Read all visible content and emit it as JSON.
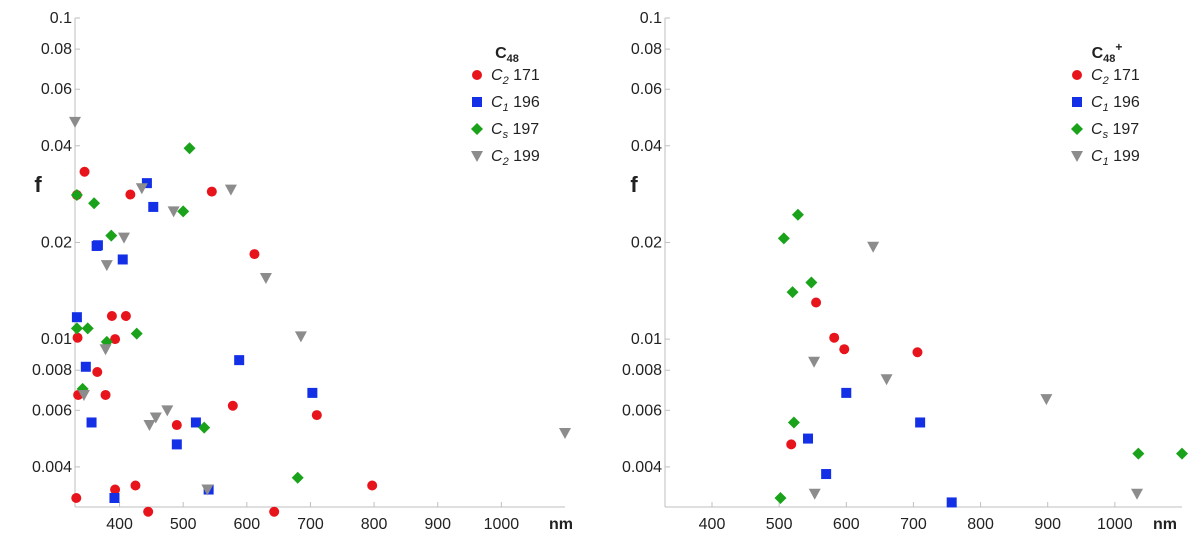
{
  "colors": {
    "C2_171": "#e8141c",
    "C1_196": "#1430e6",
    "Cs_197": "#1aa31a",
    "gray": "#8c8c8c",
    "axis": "#bfbfbf"
  },
  "chart_data": [
    {
      "type": "scatter",
      "title": "C48",
      "legend_title": {
        "base": "C",
        "sub": "48",
        "sup": ""
      },
      "xlabel": "nm",
      "ylabel": "f",
      "xlim": [
        330,
        1100
      ],
      "ylim": [
        0.003,
        0.1
      ],
      "yscale": "log",
      "xticks": [
        "400",
        "500",
        "600",
        "700",
        "800",
        "900",
        "1000"
      ],
      "xtick_values": [
        400,
        500,
        600,
        700,
        800,
        900,
        1000
      ],
      "yticks": [
        "0.004",
        "0.006",
        "0.008",
        "0.01",
        "0.02",
        "0.04",
        "0.06",
        "0.08",
        "0.1"
      ],
      "ytick_values": [
        0.004,
        0.006,
        0.008,
        0.01,
        0.02,
        0.04,
        0.06,
        0.08,
        0.1
      ],
      "legend_position": "top-right",
      "series": [
        {
          "name": "C2 171",
          "sym": "C",
          "sub": "2",
          "num": "171",
          "marker": "circle",
          "color_key": "C2_171",
          "points": [
            [
              333,
              0.0281
            ],
            [
              345,
              0.0332
            ],
            [
              334,
              0.0101
            ],
            [
              335,
              0.0067
            ],
            [
              332,
              0.0032
            ],
            [
              365,
              0.0079
            ],
            [
              378,
              0.0067
            ],
            [
              388,
              0.0118
            ],
            [
              393,
              0.01
            ],
            [
              393,
              0.0034
            ],
            [
              410,
              0.0118
            ],
            [
              417,
              0.0282
            ],
            [
              425,
              0.0035
            ],
            [
              445,
              0.0029
            ],
            [
              490,
              0.0054
            ],
            [
              545,
              0.0288
            ],
            [
              578,
              0.0062
            ],
            [
              612,
              0.0184
            ],
            [
              643,
              0.0029
            ],
            [
              710,
              0.0058
            ],
            [
              797,
              0.0035
            ]
          ]
        },
        {
          "name": "C1 196",
          "sym": "C",
          "sub": "1",
          "num": "196",
          "marker": "square",
          "color_key": "C1_196",
          "points": [
            [
              333,
              0.0117
            ],
            [
              347,
              0.0082
            ],
            [
              356,
              0.0055
            ],
            [
              364,
              0.0195
            ],
            [
              366,
              0.0196
            ],
            [
              392,
              0.0032
            ],
            [
              405,
              0.0177
            ],
            [
              443,
              0.0306
            ],
            [
              453,
              0.0258
            ],
            [
              490,
              0.0047
            ],
            [
              520,
              0.0055
            ],
            [
              540,
              0.0034
            ],
            [
              588,
              0.0086
            ],
            [
              703,
              0.0068
            ]
          ]
        },
        {
          "name": "Cs 197",
          "sym": "C",
          "sub": "s",
          "num": "197",
          "marker": "diamond",
          "color_key": "Cs_197",
          "points": [
            [
              333,
              0.0281
            ],
            [
              333,
              0.0108
            ],
            [
              342,
              0.007
            ],
            [
              350,
              0.0108
            ],
            [
              360,
              0.0265
            ],
            [
              380,
              0.0098
            ],
            [
              387,
              0.021
            ],
            [
              427,
              0.0104
            ],
            [
              500,
              0.025
            ],
            [
              510,
              0.0393
            ],
            [
              533,
              0.0053
            ],
            [
              680,
              0.0037
            ]
          ]
        },
        {
          "name": "C2 199",
          "sym": "C",
          "sub": "2",
          "num": "199",
          "marker": "triangle-down",
          "color_key": "gray",
          "points": [
            [
              330,
              0.0475
            ],
            [
              344,
              0.0067
            ],
            [
              378,
              0.0093
            ],
            [
              380,
              0.017
            ],
            [
              407,
              0.0207
            ],
            [
              435,
              0.0295
            ],
            [
              447,
              0.0054
            ],
            [
              457,
              0.0057
            ],
            [
              475,
              0.006
            ],
            [
              485,
              0.025
            ],
            [
              538,
              0.0034
            ],
            [
              575,
              0.0292
            ],
            [
              630,
              0.0155
            ],
            [
              685,
              0.0102
            ],
            [
              1100,
              0.0051
            ]
          ]
        }
      ]
    },
    {
      "type": "scatter",
      "title": "C48+",
      "legend_title": {
        "base": "C",
        "sub": "48",
        "sup": "+"
      },
      "xlabel": "nm",
      "ylabel": "f",
      "xlim": [
        330,
        1100
      ],
      "ylim": [
        0.003,
        0.1
      ],
      "yscale": "log",
      "xticks": [
        "400",
        "500",
        "600",
        "700",
        "800",
        "900",
        "1000"
      ],
      "xtick_values": [
        400,
        500,
        600,
        700,
        800,
        900,
        1000
      ],
      "yticks": [
        "0.004",
        "0.006",
        "0.008",
        "0.01",
        "0.02",
        "0.04",
        "0.06",
        "0.08",
        "0.1"
      ],
      "ytick_values": [
        0.004,
        0.006,
        0.008,
        0.01,
        0.02,
        0.04,
        0.06,
        0.08,
        0.1
      ],
      "legend_position": "top-right",
      "series": [
        {
          "name": "C2 171",
          "sym": "C",
          "sub": "2",
          "num": "171",
          "marker": "circle",
          "color_key": "C2_171",
          "points": [
            [
              518,
              0.0047
            ],
            [
              555,
              0.013
            ],
            [
              582,
              0.0101
            ],
            [
              597,
              0.0093
            ],
            [
              706,
              0.0091
            ]
          ]
        },
        {
          "name": "C1 196",
          "sym": "C",
          "sub": "1",
          "num": "196",
          "marker": "square",
          "color_key": "C1_196",
          "points": [
            [
              543,
              0.0049
            ],
            [
              570,
              0.0038
            ],
            [
              600,
              0.0068
            ],
            [
              710,
              0.0055
            ],
            [
              757,
              0.0031
            ]
          ]
        },
        {
          "name": "Cs 197",
          "sym": "C",
          "sub": "s",
          "num": "197",
          "marker": "diamond",
          "color_key": "Cs_197",
          "points": [
            [
              502,
              0.0032
            ],
            [
              507,
              0.0206
            ],
            [
              520,
              0.014
            ],
            [
              522,
              0.0055
            ],
            [
              528,
              0.0244
            ],
            [
              548,
              0.015
            ],
            [
              1035,
              0.0044
            ],
            [
              1100,
              0.0044
            ]
          ]
        },
        {
          "name": "C1 199",
          "sym": "C",
          "sub": "1",
          "num": "199",
          "marker": "triangle-down",
          "color_key": "gray",
          "points": [
            [
              553,
              0.0033
            ],
            [
              552,
              0.0085
            ],
            [
              640,
              0.0194
            ],
            [
              660,
              0.0075
            ],
            [
              898,
              0.0065
            ],
            [
              1033,
              0.0033
            ]
          ]
        }
      ]
    }
  ]
}
